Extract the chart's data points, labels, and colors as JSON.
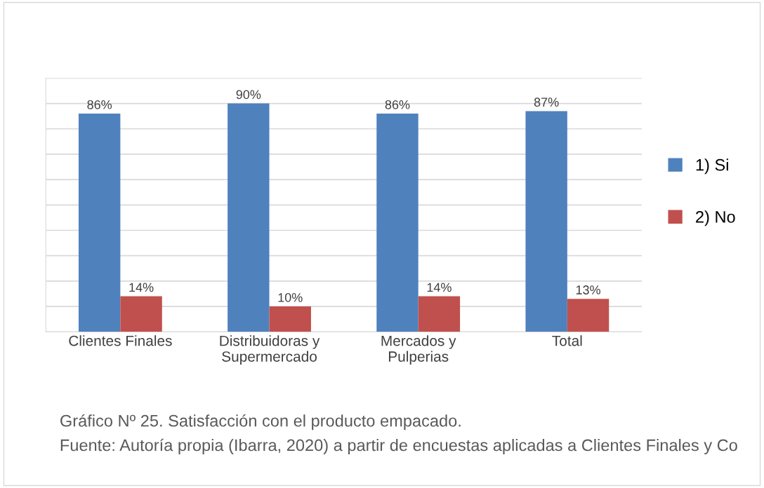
{
  "chart_data": {
    "type": "bar",
    "categories": [
      "Clientes Finales",
      "Distribuidoras y\nSupermercado",
      "Mercados y\nPulperias",
      "Total"
    ],
    "series": [
      {
        "name": "1) Si",
        "color": "#4f81bd",
        "values": [
          86,
          90,
          86,
          87
        ],
        "value_labels": [
          "86%",
          "90%",
          "86%",
          "87%"
        ]
      },
      {
        "name": "2) No",
        "color": "#c0504d",
        "values": [
          14,
          10,
          14,
          13
        ],
        "value_labels": [
          "14%",
          "10%",
          "14%",
          "13%"
        ]
      }
    ],
    "ylim": [
      0,
      100
    ],
    "yticks": [
      {
        "value": 0,
        "label": null
      },
      {
        "value": 10,
        "label": null
      },
      {
        "value": 20,
        "label": null
      },
      {
        "value": 30,
        "label": null
      },
      {
        "value": 40,
        "label": null
      },
      {
        "value": 50,
        "label": null
      },
      {
        "value": 60,
        "label": null
      },
      {
        "value": 70,
        "label": null
      },
      {
        "value": 80,
        "label": null
      },
      {
        "value": 90,
        "label": null
      },
      {
        "value": 100,
        "label": null
      }
    ],
    "tick_labels": "x",
    "grid": "y",
    "legend": "right",
    "annotations": [
      "Gráfico Nº 25. Satisfacción con el producto empacado.",
      "Fuente: Autoría propia (Ibarra, 2020) a partir de encuestas aplicadas a Clientes Finales y Co"
    ]
  }
}
